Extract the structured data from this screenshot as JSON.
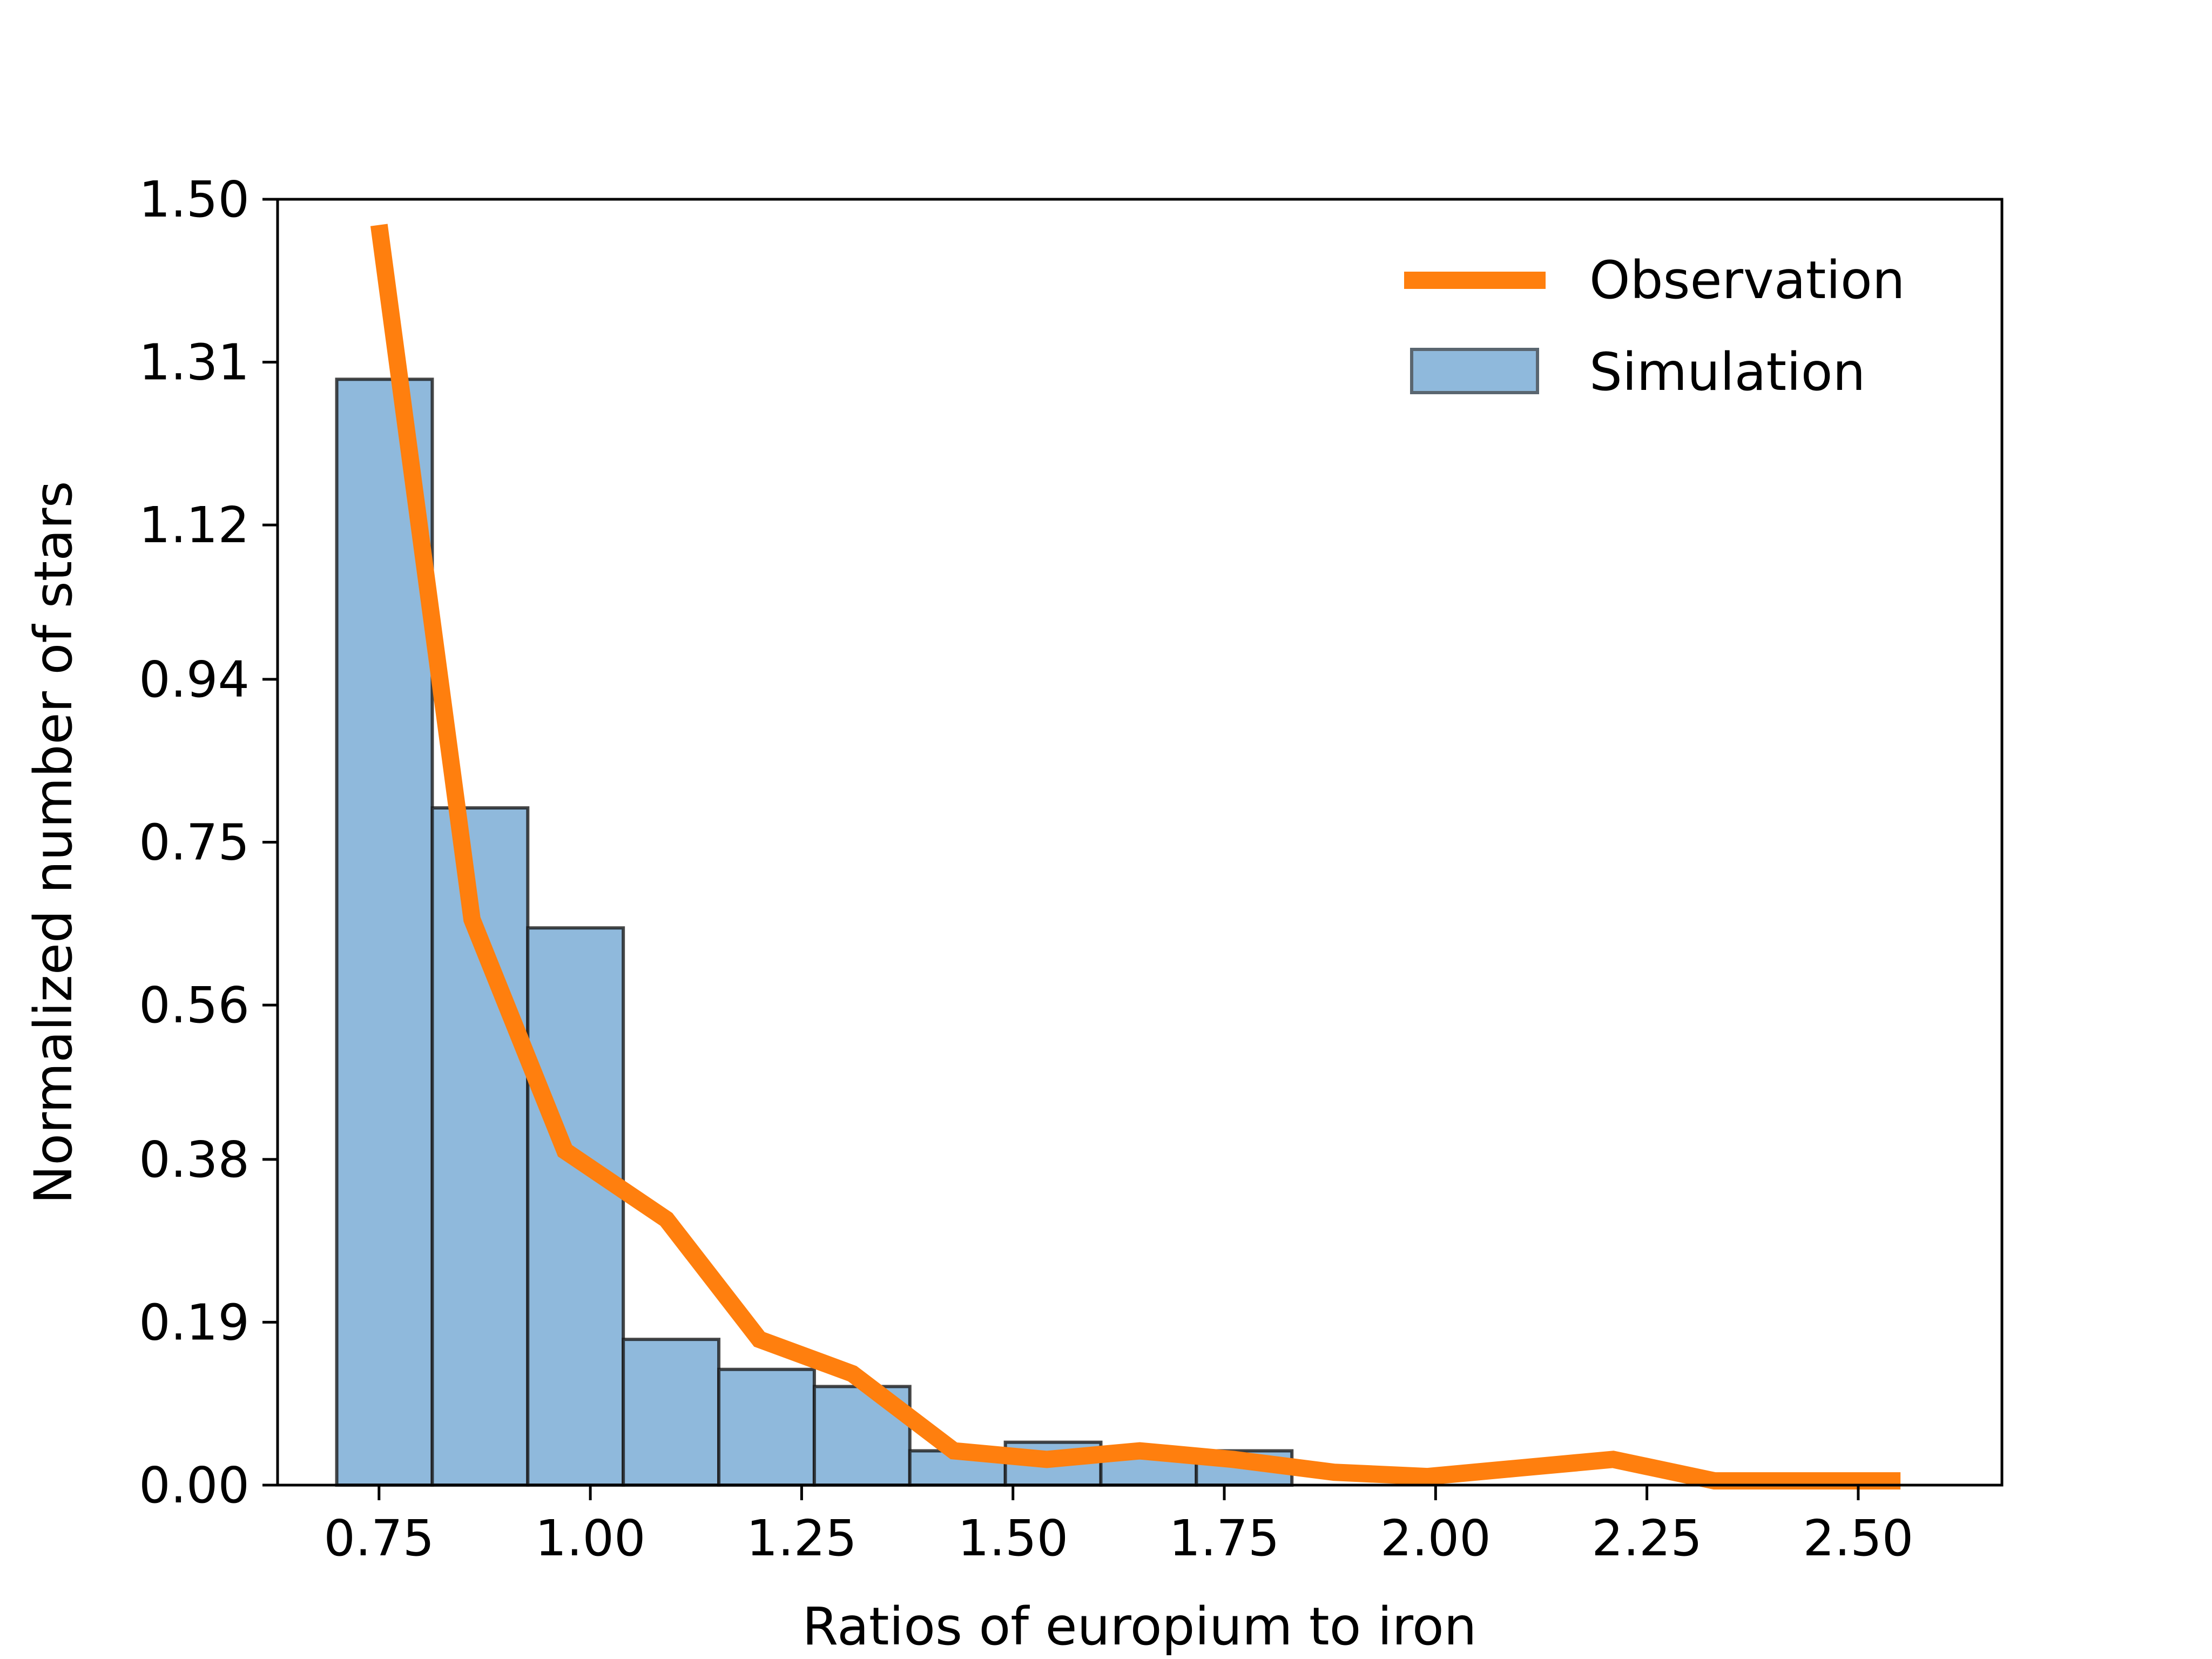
{
  "chart_data": {
    "type": "bar",
    "xlabel": "Ratios of europium to iron",
    "ylabel": "Normalized number of stars",
    "xlim": [
      0.63,
      2.67
    ],
    "ylim": [
      0.0,
      1.5
    ],
    "x_ticks": [
      0.75,
      1.0,
      1.25,
      1.5,
      1.75,
      2.0,
      2.25,
      2.5
    ],
    "x_tick_labels": [
      "0.75",
      "1.00",
      "1.25",
      "1.50",
      "1.75",
      "2.00",
      "2.25",
      "2.50"
    ],
    "y_ticks": [
      0.0,
      0.19,
      0.38,
      0.56,
      0.75,
      0.94,
      1.12,
      1.31,
      1.5
    ],
    "y_tick_labels": [
      "0.00",
      "0.19",
      "0.38",
      "0.56",
      "0.75",
      "0.94",
      "1.12",
      "1.31",
      "1.50"
    ],
    "legend_placement": "top-right",
    "grid": false,
    "series": [
      {
        "name": "Observation",
        "type": "line",
        "color": "#ff7f0e",
        "x": [
          0.75,
          0.86,
          0.97,
          1.09,
          1.2,
          1.31,
          1.43,
          1.54,
          1.65,
          1.76,
          1.88,
          1.99,
          2.1,
          2.21,
          2.33,
          2.55
        ],
        "y": [
          1.47,
          0.66,
          0.39,
          0.31,
          0.17,
          0.13,
          0.04,
          0.03,
          0.04,
          0.03,
          0.015,
          0.01,
          0.02,
          0.03,
          0.005,
          0.005
        ]
      },
      {
        "name": "Simulation",
        "type": "histogram",
        "color": "#8fb9dc",
        "edge_color": "#1a1a1a",
        "bin_edges": [
          0.7,
          0.813,
          0.926,
          1.039,
          1.152,
          1.265,
          1.378,
          1.491,
          1.604,
          1.717,
          1.83
        ],
        "values": [
          1.29,
          0.79,
          0.65,
          0.17,
          0.135,
          0.115,
          0.04,
          0.05,
          0.04,
          0.04
        ]
      }
    ]
  }
}
